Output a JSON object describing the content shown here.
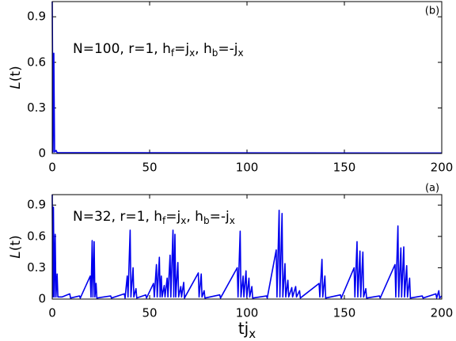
{
  "chart_data": [
    {
      "type": "line",
      "panel_label": "(b)",
      "annotation": [
        "N=100, r=1, h",
        "f",
        "=j",
        "x",
        ", h",
        "b",
        "=-j",
        "x"
      ],
      "ylabel": [
        "L",
        "(t)"
      ],
      "x": [
        0,
        0.4,
        0.8,
        1.2,
        2,
        2.5,
        200
      ],
      "series": [
        {
          "color": "#0000ee",
          "values": [
            1.0,
            0.01,
            0.66,
            0.01,
            0.02,
            0.005,
            0.003
          ]
        }
      ],
      "xlim": [
        0,
        200
      ],
      "ylim": [
        0,
        1
      ],
      "xticks": [
        0,
        50,
        100,
        150,
        200
      ],
      "yticks": [
        0,
        0.3,
        0.6,
        0.9
      ]
    },
    {
      "type": "line",
      "panel_label": "(a)",
      "annotation": [
        "N=32, r=1, h",
        "f",
        "=j",
        "x",
        ", h",
        "b",
        "=-j",
        "x"
      ],
      "ylabel": [
        "L",
        "(t)"
      ],
      "xlabel": [
        "tj",
        "x"
      ],
      "x": [
        0,
        0.3,
        0.6,
        1.0,
        1.5,
        1.9,
        2.5,
        2.9,
        5,
        9,
        9.4,
        14,
        14.4,
        19.5,
        19.9,
        20.5,
        20.9,
        21.5,
        21.9,
        22.5,
        22.9,
        30,
        30.4,
        37,
        37.4,
        38.5,
        38.9,
        40,
        40.4,
        41.5,
        41.9,
        43,
        43.4,
        48,
        48.4,
        52,
        52.4,
        53.5,
        53.9,
        55,
        55.4,
        56,
        56.4,
        57.5,
        57.9,
        59,
        59.4,
        60.5,
        60.9,
        62,
        62.4,
        63,
        63.4,
        64.5,
        64.9,
        66,
        66.4,
        67.5,
        67.9,
        75,
        75.4,
        76.5,
        76.9,
        78,
        78.4,
        86,
        86.4,
        95,
        95.4,
        96.5,
        96.9,
        98,
        98.4,
        99.5,
        99.9,
        101,
        101.4,
        102.5,
        102.9,
        110,
        110.4,
        115,
        115.4,
        116.5,
        116.9,
        118,
        118.4,
        119.5,
        119.9,
        121,
        121.4,
        123,
        123.4,
        125,
        125.4,
        127,
        127.4,
        137,
        137.4,
        138.5,
        138.9,
        140,
        140.4,
        148,
        148.4,
        155,
        155.4,
        156.5,
        156.9,
        158,
        158.4,
        159.5,
        159.9,
        161,
        161.4,
        168,
        168.4,
        176,
        176.4,
        177.5,
        177.9,
        179,
        179.4,
        180.5,
        180.9,
        182,
        182.4,
        183.5,
        183.9,
        190,
        190.4,
        197,
        197.4,
        198.5,
        198.9,
        200
      ],
      "series": [
        {
          "color": "#0000ee",
          "values": [
            1.0,
            0.02,
            0.88,
            0.02,
            0.62,
            0.02,
            0.24,
            0.02,
            0.02,
            0.05,
            0.01,
            0.03,
            0.01,
            0.22,
            0.02,
            0.56,
            0.02,
            0.55,
            0.02,
            0.15,
            0.01,
            0.03,
            0.01,
            0.05,
            0.01,
            0.22,
            0.02,
            0.66,
            0.02,
            0.3,
            0.02,
            0.1,
            0.01,
            0.04,
            0.01,
            0.15,
            0.02,
            0.33,
            0.02,
            0.4,
            0.02,
            0.22,
            0.02,
            0.13,
            0.02,
            0.2,
            0.02,
            0.42,
            0.02,
            0.66,
            0.02,
            0.62,
            0.02,
            0.35,
            0.02,
            0.12,
            0.02,
            0.16,
            0.01,
            0.25,
            0.02,
            0.24,
            0.02,
            0.08,
            0.01,
            0.04,
            0.01,
            0.3,
            0.02,
            0.65,
            0.02,
            0.22,
            0.02,
            0.27,
            0.02,
            0.2,
            0.02,
            0.12,
            0.01,
            0.03,
            0.01,
            0.47,
            0.02,
            0.85,
            0.02,
            0.82,
            0.02,
            0.34,
            0.02,
            0.18,
            0.02,
            0.11,
            0.02,
            0.12,
            0.02,
            0.08,
            0.01,
            0.15,
            0.02,
            0.38,
            0.02,
            0.22,
            0.01,
            0.04,
            0.01,
            0.3,
            0.02,
            0.55,
            0.02,
            0.46,
            0.02,
            0.45,
            0.02,
            0.1,
            0.01,
            0.03,
            0.01,
            0.33,
            0.02,
            0.7,
            0.02,
            0.49,
            0.02,
            0.5,
            0.02,
            0.32,
            0.02,
            0.2,
            0.01,
            0.03,
            0.01,
            0.05,
            0.01,
            0.08,
            0.01,
            0.03
          ]
        }
      ],
      "xlim": [
        0,
        200
      ],
      "ylim": [
        0,
        1
      ],
      "xticks": [
        0,
        50,
        100,
        150,
        200
      ],
      "yticks": [
        0,
        0.3,
        0.6,
        0.9
      ]
    }
  ]
}
